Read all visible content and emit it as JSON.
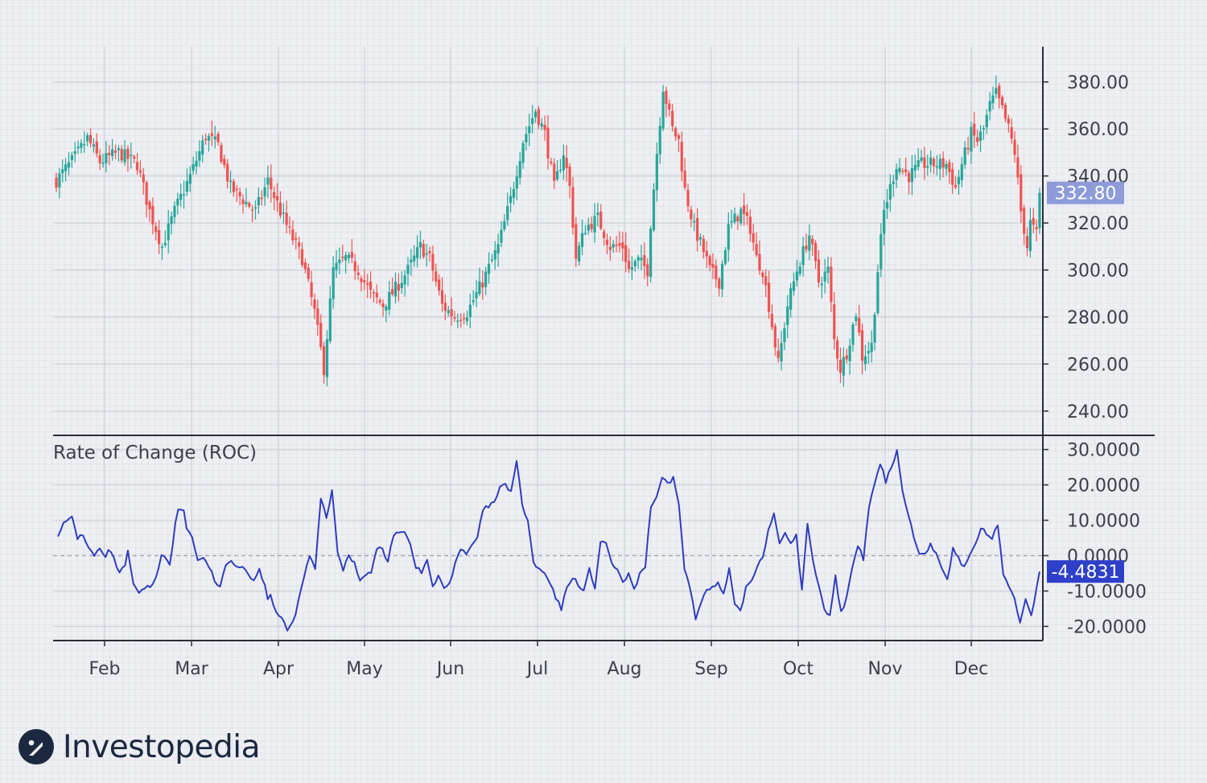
{
  "chart_data": [
    {
      "type": "candlestick",
      "title": "",
      "ylim": [
        230,
        395
      ],
      "y_ticks": [
        240,
        260,
        280,
        300,
        320,
        340,
        360,
        380
      ],
      "y_tick_labels": [
        "240.00",
        "260.00",
        "280.00",
        "300.00",
        "320.00",
        "340.00",
        "360.00",
        "380.00"
      ],
      "last_price_label": "332.80",
      "last_price": 332.8,
      "up_color": "#26a69a",
      "down_color": "#ef5350",
      "label_color": "#8d9bd8",
      "waypoints": [
        [
          0,
          338
        ],
        [
          6,
          348
        ],
        [
          10,
          356
        ],
        [
          14,
          346
        ],
        [
          20,
          350
        ],
        [
          26,
          345
        ],
        [
          30,
          325
        ],
        [
          34,
          310
        ],
        [
          38,
          325
        ],
        [
          43,
          340
        ],
        [
          48,
          357
        ],
        [
          52,
          353
        ],
        [
          56,
          335
        ],
        [
          60,
          330
        ],
        [
          64,
          325
        ],
        [
          68,
          338
        ],
        [
          72,
          325
        ],
        [
          75,
          316
        ],
        [
          79,
          305
        ],
        [
          83,
          282
        ],
        [
          86,
          258
        ],
        [
          89,
          300
        ],
        [
          93,
          305
        ],
        [
          97,
          300
        ],
        [
          101,
          290
        ],
        [
          105,
          285
        ],
        [
          109,
          292
        ],
        [
          113,
          300
        ],
        [
          117,
          310
        ],
        [
          120,
          305
        ],
        [
          124,
          285
        ],
        [
          128,
          280
        ],
        [
          132,
          282
        ],
        [
          137,
          295
        ],
        [
          142,
          310
        ],
        [
          146,
          330
        ],
        [
          150,
          355
        ],
        [
          154,
          368
        ],
        [
          157,
          358
        ],
        [
          160,
          335
        ],
        [
          163,
          350
        ],
        [
          165,
          335
        ],
        [
          167,
          305
        ],
        [
          170,
          318
        ],
        [
          174,
          322
        ],
        [
          178,
          310
        ],
        [
          182,
          310
        ],
        [
          184,
          300
        ],
        [
          187,
          304
        ],
        [
          190,
          300
        ],
        [
          191,
          320
        ],
        [
          193,
          350
        ],
        [
          195,
          378
        ],
        [
          198,
          360
        ],
        [
          200,
          355
        ],
        [
          202,
          334
        ],
        [
          205,
          318
        ],
        [
          208,
          308
        ],
        [
          210,
          300
        ],
        [
          213,
          295
        ],
        [
          216,
          318
        ],
        [
          220,
          325
        ],
        [
          223,
          318
        ],
        [
          225,
          305
        ],
        [
          227,
          300
        ],
        [
          229,
          285
        ],
        [
          232,
          260
        ],
        [
          235,
          285
        ],
        [
          238,
          300
        ],
        [
          242,
          315
        ],
        [
          245,
          295
        ],
        [
          248,
          300
        ],
        [
          250,
          270
        ],
        [
          252,
          258
        ],
        [
          254,
          265
        ],
        [
          257,
          282
        ],
        [
          259,
          263
        ],
        [
          262,
          268
        ],
        [
          264,
          300
        ],
        [
          266,
          325
        ],
        [
          270,
          345
        ],
        [
          274,
          340
        ],
        [
          278,
          345
        ],
        [
          282,
          345
        ],
        [
          286,
          345
        ],
        [
          289,
          335
        ],
        [
          291,
          345
        ],
        [
          294,
          358
        ],
        [
          296,
          355
        ],
        [
          298,
          360
        ],
        [
          300,
          370
        ],
        [
          302,
          375
        ],
        [
          304,
          368
        ],
        [
          306,
          360
        ],
        [
          308,
          350
        ],
        [
          310,
          325
        ],
        [
          312,
          310
        ],
        [
          313,
          320
        ],
        [
          315,
          315
        ],
        [
          316,
          332.8
        ]
      ],
      "n_candles": 317
    },
    {
      "type": "line",
      "title": "Rate of Change (ROC)",
      "ylim": [
        -24,
        34
      ],
      "y_ticks": [
        -20,
        -10,
        0,
        10,
        20,
        30
      ],
      "y_tick_labels": [
        "-20.0000",
        "-10.0000",
        "0.0000",
        "10.0000",
        "20.0000",
        "30.0000"
      ],
      "last_value_label": "-4.4831",
      "last_value": -4.4831,
      "zero_line": true,
      "line_color": "#2e3dbf",
      "label_color": "#2e40c9",
      "waypoints": [
        [
          0,
          6
        ],
        [
          2,
          9
        ],
        [
          4,
          10
        ],
        [
          5,
          11
        ],
        [
          7,
          5
        ],
        [
          9,
          6
        ],
        [
          11,
          2
        ],
        [
          13,
          0
        ],
        [
          15,
          2
        ],
        [
          17,
          -1
        ],
        [
          18,
          2
        ],
        [
          20,
          -1
        ],
        [
          22,
          -5
        ],
        [
          24,
          -3
        ],
        [
          25,
          1
        ],
        [
          27,
          -8
        ],
        [
          29,
          -11
        ],
        [
          31,
          -9
        ],
        [
          33,
          -9
        ],
        [
          35,
          -6
        ],
        [
          37,
          0
        ],
        [
          39,
          -1
        ],
        [
          40,
          -3
        ],
        [
          42,
          9
        ],
        [
          43,
          13
        ],
        [
          45,
          13
        ],
        [
          46,
          8
        ],
        [
          48,
          5
        ],
        [
          50,
          -1
        ],
        [
          52,
          -1
        ],
        [
          54,
          -3
        ],
        [
          56,
          -7
        ],
        [
          58,
          -9
        ],
        [
          60,
          -3
        ],
        [
          62,
          -1
        ],
        [
          64,
          -3
        ],
        [
          66,
          -3
        ],
        [
          68,
          -5
        ],
        [
          70,
          -7
        ],
        [
          72,
          -4
        ],
        [
          74,
          -8
        ],
        [
          75,
          -12
        ],
        [
          76,
          -11
        ],
        [
          78,
          -16
        ],
        [
          80,
          -18
        ],
        [
          82,
          -21
        ],
        [
          84,
          -19
        ],
        [
          86,
          -13
        ],
        [
          88,
          -6
        ],
        [
          90,
          0
        ],
        [
          92,
          -4
        ],
        [
          94,
          16
        ],
        [
          96,
          11
        ],
        [
          98,
          18
        ],
        [
          100,
          1
        ],
        [
          102,
          -4
        ],
        [
          104,
          0
        ],
        [
          106,
          -2
        ],
        [
          108,
          -7
        ],
        [
          110,
          -5
        ],
        [
          112,
          -5
        ],
        [
          114,
          2
        ],
        [
          116,
          2
        ],
        [
          118,
          -2
        ],
        [
          120,
          6
        ],
        [
          122,
          7
        ],
        [
          124,
          7
        ],
        [
          126,
          3
        ],
        [
          128,
          -3
        ],
        [
          130,
          -5
        ],
        [
          132,
          -1
        ],
        [
          134,
          -9
        ],
        [
          136,
          -6
        ],
        [
          138,
          -9
        ],
        [
          140,
          -8
        ],
        [
          142,
          -2
        ],
        [
          144,
          2
        ],
        [
          146,
          0
        ],
        [
          148,
          3
        ],
        [
          150,
          5
        ],
        [
          152,
          13
        ],
        [
          154,
          14
        ],
        [
          156,
          15
        ],
        [
          158,
          19
        ],
        [
          160,
          20
        ],
        [
          162,
          18
        ],
        [
          164,
          27
        ],
        [
          166,
          14
        ],
        [
          168,
          10
        ],
        [
          170,
          -2
        ],
        [
          172,
          -4
        ],
        [
          174,
          -5
        ],
        [
          176,
          -8
        ],
        [
          178,
          -12
        ],
        [
          180,
          -15
        ],
        [
          182,
          -9
        ],
        [
          184,
          -6
        ],
        [
          186,
          -8
        ],
        [
          188,
          -10
        ],
        [
          190,
          -4
        ],
        [
          192,
          -9
        ],
        [
          194,
          4
        ],
        [
          196,
          3
        ],
        [
          198,
          -2
        ],
        [
          200,
          -4
        ],
        [
          202,
          -8
        ],
        [
          204,
          -5
        ],
        [
          206,
          -10
        ],
        [
          208,
          -5
        ],
        [
          210,
          -3
        ],
        [
          212,
          14
        ],
        [
          214,
          16
        ],
        [
          216,
          22
        ],
        [
          218,
          20
        ],
        [
          220,
          22
        ],
        [
          222,
          15
        ],
        [
          224,
          -4
        ],
        [
          226,
          -9
        ],
        [
          228,
          -18
        ],
        [
          230,
          -13
        ],
        [
          232,
          -9
        ],
        [
          234,
          -9
        ],
        [
          236,
          -8
        ],
        [
          238,
          -11
        ],
        [
          240,
          -4
        ],
        [
          242,
          -14
        ],
        [
          244,
          -16
        ],
        [
          246,
          -9
        ],
        [
          248,
          -7
        ],
        [
          250,
          -3
        ],
        [
          252,
          0
        ],
        [
          254,
          7
        ],
        [
          256,
          12
        ],
        [
          258,
          4
        ],
        [
          260,
          6
        ],
        [
          262,
          3
        ],
        [
          264,
          6
        ],
        [
          266,
          -10
        ],
        [
          268,
          9
        ],
        [
          270,
          -2
        ],
        [
          272,
          -8
        ],
        [
          274,
          -15
        ],
        [
          276,
          -17
        ],
        [
          278,
          -6
        ],
        [
          280,
          -16
        ],
        [
          282,
          -12
        ],
        [
          284,
          -4
        ],
        [
          286,
          3
        ],
        [
          288,
          -1
        ],
        [
          290,
          14
        ],
        [
          292,
          20
        ],
        [
          294,
          26
        ],
        [
          296,
          21
        ],
        [
          298,
          25
        ],
        [
          300,
          30
        ],
        [
          302,
          18
        ],
        [
          304,
          12
        ],
        [
          306,
          5
        ],
        [
          308,
          1
        ],
        [
          310,
          1
        ],
        [
          312,
          3
        ],
        [
          314,
          1
        ],
        [
          316,
          -4
        ],
        [
          318,
          -7
        ],
        [
          320,
          2
        ],
        [
          322,
          -1
        ],
        [
          324,
          -3
        ],
        [
          326,
          0
        ],
        [
          328,
          3
        ],
        [
          330,
          8
        ],
        [
          332,
          6
        ],
        [
          334,
          5
        ],
        [
          336,
          9
        ],
        [
          338,
          -5
        ],
        [
          340,
          -9
        ],
        [
          342,
          -12
        ],
        [
          344,
          -19
        ],
        [
          346,
          -12
        ],
        [
          348,
          -17
        ],
        [
          350,
          -9
        ],
        [
          351,
          -4.4831
        ]
      ],
      "n_points": 352
    }
  ],
  "x_axis": {
    "months": [
      "Feb",
      "Mar",
      "Apr",
      "May",
      "Jun",
      "Jul",
      "Aug",
      "Sep",
      "Oct",
      "Nov",
      "Dec"
    ]
  },
  "grid": true,
  "brand": {
    "name": "Investopedia",
    "logo_icon": "investopedia-i-icon",
    "color": "#1c2840"
  }
}
